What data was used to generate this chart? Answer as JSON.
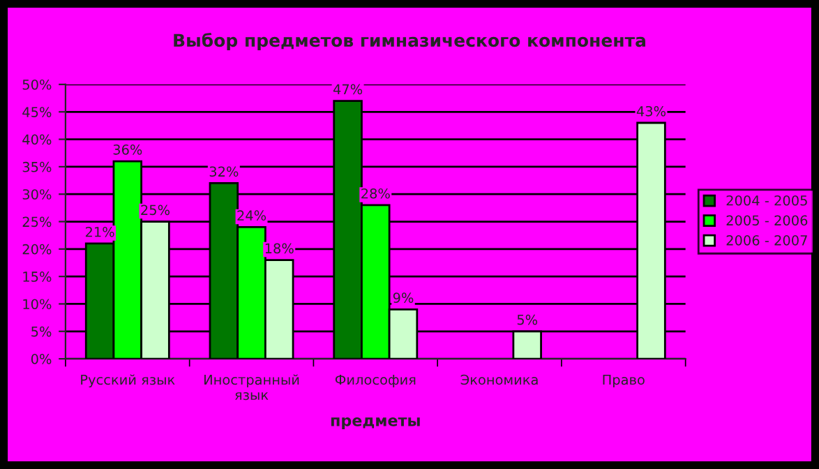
{
  "chart_data": {
    "type": "bar",
    "title": "Выбор предметов гимназического компонента",
    "xlabel": "предметы",
    "categories": [
      "Русский язык",
      "Иностранный\nязык",
      "Философия",
      "Экономика",
      "Право"
    ],
    "series": [
      {
        "name": "2004 - 2005",
        "color": "#007800",
        "values": [
          21,
          32,
          47,
          null,
          null
        ],
        "value_labels": [
          "21%",
          "32%",
          "47%",
          null,
          null
        ]
      },
      {
        "name": "2005 - 2006",
        "color": "#00ff00",
        "values": [
          36,
          24,
          28,
          null,
          null
        ],
        "value_labels": [
          "36%",
          "24%",
          "28%",
          null,
          null
        ]
      },
      {
        "name": "2006 - 2007",
        "color": "#ccffcc",
        "values": [
          25,
          18,
          9,
          5,
          43
        ],
        "value_labels": [
          "25%",
          "18%",
          "9%",
          "5%",
          "43%"
        ]
      }
    ],
    "ylim": [
      0,
      50
    ],
    "yticks": [
      {
        "value": 0,
        "label": "0%"
      },
      {
        "value": 5,
        "label": "5%"
      },
      {
        "value": 10,
        "label": "10%"
      },
      {
        "value": 15,
        "label": "15%"
      },
      {
        "value": 20,
        "label": "20%"
      },
      {
        "value": 25,
        "label": "25%"
      },
      {
        "value": 30,
        "label": "30%"
      },
      {
        "value": 35,
        "label": "35%"
      },
      {
        "value": 40,
        "label": "40%"
      },
      {
        "value": 45,
        "label": "45%"
      },
      {
        "value": 50,
        "label": "50%"
      }
    ],
    "grid": "y",
    "legend": "right"
  }
}
